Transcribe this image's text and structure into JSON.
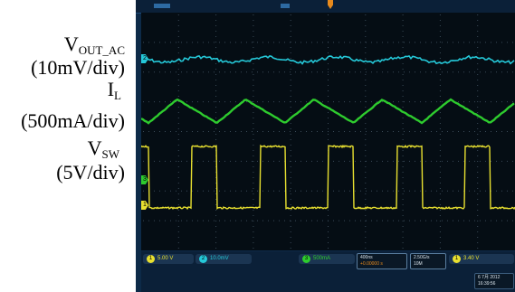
{
  "labels": {
    "vout": {
      "main": "V",
      "sub": "OUT_AC",
      "scale": "(10mV/div)"
    },
    "il": {
      "main": "I",
      "sub": "L",
      "scale": "(500mA/div)"
    },
    "vsw": {
      "main": "V",
      "sub": "SW",
      "scale": "(5V/div)"
    }
  },
  "scope": {
    "colors": {
      "ch1": "#e8e030",
      "ch2": "#25c8d8",
      "ch3": "#2ecb2e",
      "grid": "#3a4a58"
    },
    "markers": {
      "ch1": "1",
      "ch2": "2",
      "ch3": "3"
    },
    "status": {
      "ch1": {
        "num": "1",
        "value": "5.00 V"
      },
      "ch2": {
        "num": "2",
        "value": "10.0mV"
      },
      "ch3": {
        "num": "3",
        "value": "500mA"
      },
      "timebase": "400ns",
      "offset": "+0.00000 s",
      "rate": "2.50G/s",
      "points": "10M",
      "trigger": {
        "num": "1",
        "value": "3.40 V"
      },
      "date": "6 7月 2012",
      "time": "16:39:56"
    }
  }
}
